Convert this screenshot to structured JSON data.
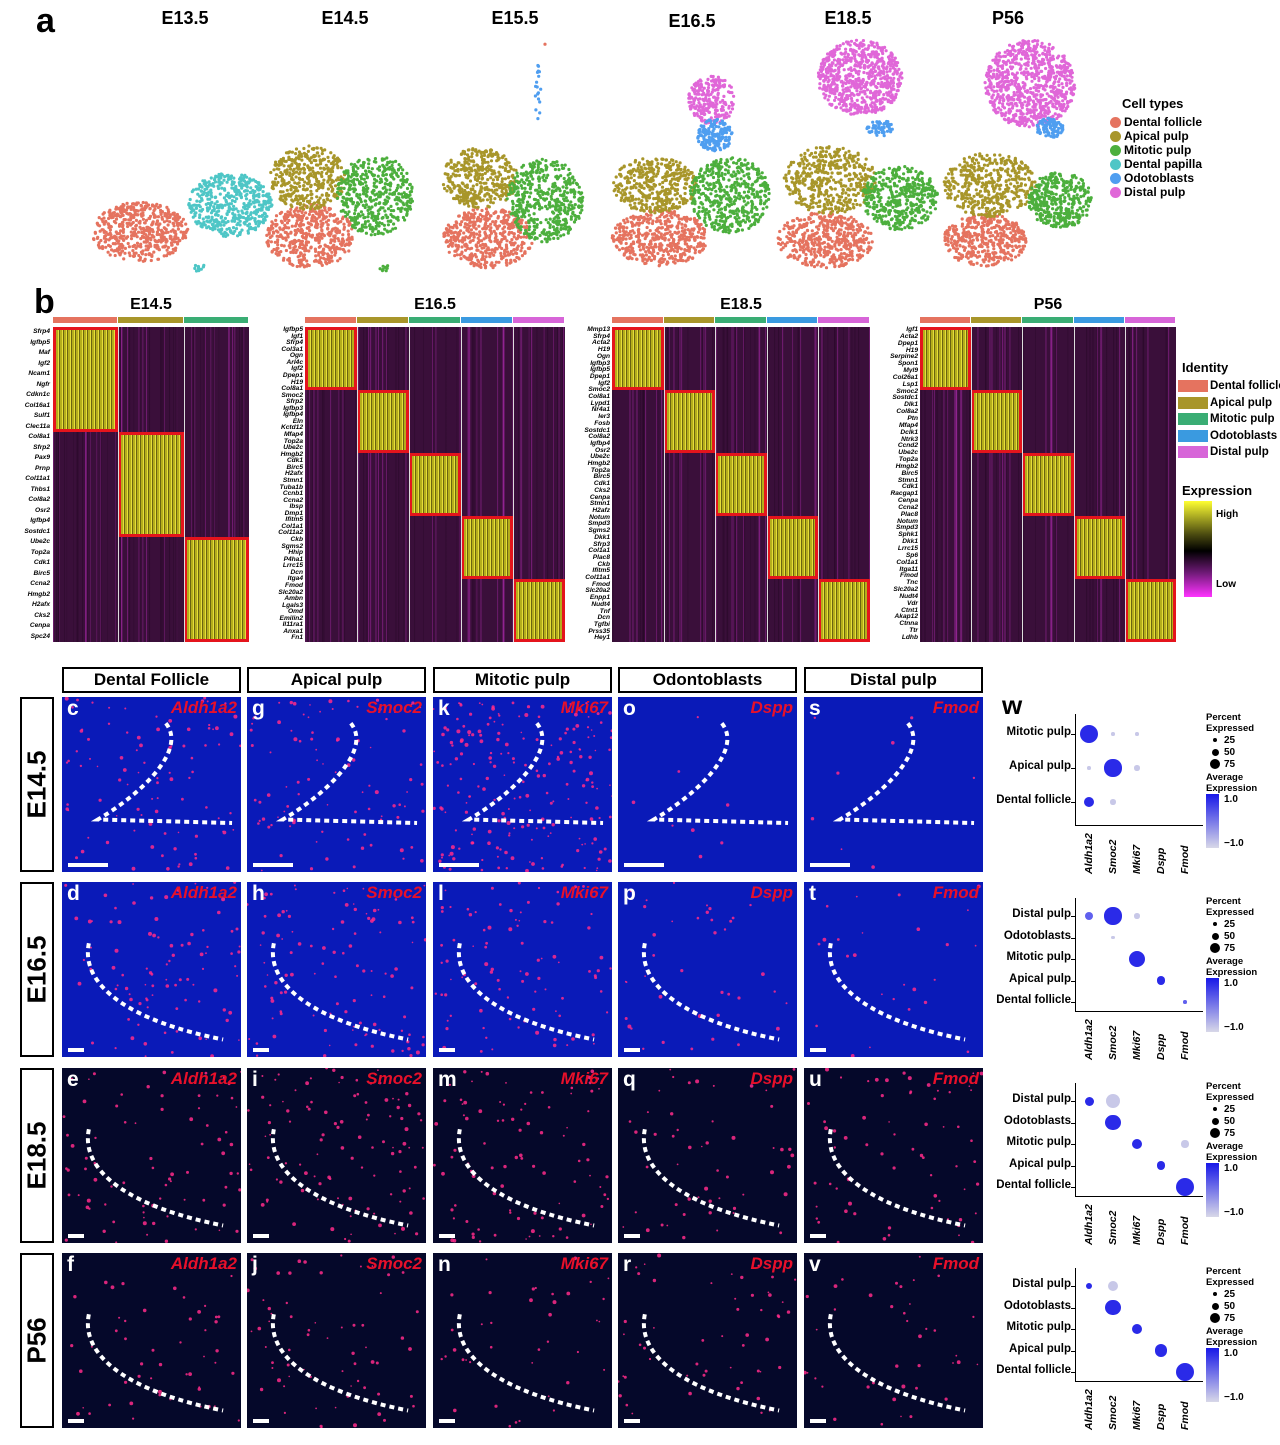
{
  "panel_a": {
    "letter": "a",
    "timepoints": [
      "E13.5",
      "E14.5",
      "E15.5",
      "E16.5",
      "E18.5",
      "P56"
    ],
    "legend_title": "Cell types",
    "legend": [
      {
        "label": "Dental follicle",
        "color": "#e5735f"
      },
      {
        "label": "Apical pulp",
        "color": "#a8962a"
      },
      {
        "label": "Mitotic pulp",
        "color": "#4caf3d"
      },
      {
        "label": "Dental papilla",
        "color": "#4ec6c6"
      },
      {
        "label": "Odotoblasts",
        "color": "#4f9ef0"
      },
      {
        "label": "Distal pulp",
        "color": "#e067d8"
      }
    ]
  },
  "panel_b": {
    "letter": "b",
    "legend_identity_title": "Identity",
    "legend_identity": [
      {
        "label": "Dental follicle",
        "color": "#e5735f"
      },
      {
        "label": "Apical pulp",
        "color": "#a8962a"
      },
      {
        "label": "Mitotic pulp",
        "color": "#3aad74"
      },
      {
        "label": "Odotoblasts",
        "color": "#3a9ae0"
      },
      {
        "label": "Distal pulp",
        "color": "#d765d8"
      }
    ],
    "legend_expression_title": "Expression",
    "expression_high": "High",
    "expression_low": "Low",
    "heatmaps": [
      {
        "title": "E14.5",
        "groups": [
          "#e5735f",
          "#a8962a",
          "#3aad74"
        ],
        "genes": [
          "Sfrp4",
          "Igfbp5",
          "Maf",
          "Igf2",
          "Ncam1",
          "Ngfr",
          "Cdkn1c",
          "Col16a1",
          "Sulf1",
          "Clec11a",
          "Col8a1",
          "Sfrp2",
          "Pax9",
          "Prnp",
          "Col11a1",
          "Thbs1",
          "Col8a2",
          "Osr2",
          "Igfbp4",
          "Sostdc1",
          "Ube2c",
          "Top2a",
          "Cdk1",
          "Birc5",
          "Ccna2",
          "Hmgb2",
          "H2afx",
          "Cks2",
          "Cenpa",
          "Spc24"
        ]
      },
      {
        "title": "E16.5",
        "groups": [
          "#e5735f",
          "#a8962a",
          "#3aad74",
          "#3a9ae0",
          "#d765d8"
        ],
        "genes": [
          "Igfbp5",
          "Igf1",
          "Sfrp4",
          "Col3a1",
          "Ogn",
          "Arl4c",
          "Igf2",
          "Dpep1",
          "H19",
          "Col8a1",
          "Smoc2",
          "Sfrp2",
          "Igfbp3",
          "Igfbp4",
          "Eln",
          "Kctd12",
          "Mfap4",
          "Top2a",
          "Ube2c",
          "Hmgb2",
          "Cdk1",
          "Birc5",
          "H2afx",
          "Stmn1",
          "Tuba1b",
          "Ccnb1",
          "Ccna2",
          "Ibsp",
          "Dmp1",
          "Ifitm5",
          "Col1a1",
          "Col11a2",
          "Ckb",
          "Sgms2",
          "Hhip",
          "P4ha1",
          "Lrrc15",
          "Dcn",
          "Itga4",
          "Fmod",
          "Slc20a2",
          "Ambn",
          "Lgals3",
          "Omd",
          "Emilin2",
          "Il11ra1",
          "Anxa1",
          "Fn1"
        ]
      },
      {
        "title": "E18.5",
        "groups": [
          "#e5735f",
          "#a8962a",
          "#3aad74",
          "#3a9ae0",
          "#d765d8"
        ],
        "genes": [
          "Mmp13",
          "Sfrp4",
          "Acta2",
          "H19",
          "Ogn",
          "Igfbp3",
          "Igfbp5",
          "Dpep1",
          "Igf2",
          "Smoc2",
          "Col8a1",
          "Lypd1",
          "Nr4a1",
          "Ier3",
          "Fosb",
          "Sostdc1",
          "Col8a2",
          "Igfbp4",
          "Osr2",
          "Ube2c",
          "Hmgb2",
          "Top2a",
          "Birc5",
          "Cdk1",
          "Cks2",
          "Cenpa",
          "Stmn1",
          "H2afz",
          "Notum",
          "Smpd3",
          "Sgms2",
          "Dkk1",
          "Sfrp3",
          "Col1a1",
          "Plac8",
          "Ckb",
          "Ifitm5",
          "Col11a1",
          "Fmod",
          "Slc20a2",
          "Enpp1",
          "Nudt4",
          "Tnf",
          "Dcn",
          "Tgfbi",
          "Prss35",
          "Hey1"
        ]
      },
      {
        "title": "P56",
        "groups": [
          "#e5735f",
          "#a8962a",
          "#3aad74",
          "#3a9ae0",
          "#d765d8"
        ],
        "genes": [
          "Igf1",
          "Acta2",
          "Dpep1",
          "H19",
          "Serpine2",
          "Spon1",
          "Myl9",
          "Col26a1",
          "Lsp1",
          "Smoc2",
          "Sostdc1",
          "Dlk1",
          "Col8a2",
          "Ptn",
          "Mfap4",
          "Dclk1",
          "Ntrk3",
          "Ccnd2",
          "Ube2c",
          "Top2a",
          "Hmgb2",
          "Birc5",
          "Stmn1",
          "Cdk1",
          "Racgap1",
          "Cenpa",
          "Ccna2",
          "Plac8",
          "Notum",
          "Smpd3",
          "Sphk1",
          "Dkk1",
          "Lrrc15",
          "Sp6",
          "Col1a1",
          "Itga11",
          "Fmod",
          "Tnc",
          "Slc20a2",
          "Nudt4",
          "Vdr",
          "Ctnt1",
          "Akap12",
          "Ctnna",
          "Ttr",
          "Ldhb"
        ]
      }
    ]
  },
  "panel_ish": {
    "columns": [
      "Dental Follicle",
      "Apical pulp",
      "Mitotic pulp",
      "Odontoblasts",
      "Distal pulp"
    ],
    "genes": [
      "Aldh1a2",
      "Smoc2",
      "Mki67",
      "Dspp",
      "Fmod"
    ],
    "rows": [
      "E14.5",
      "E16.5",
      "E18.5",
      "P56"
    ],
    "letters": [
      [
        "c",
        "g",
        "k",
        "o",
        "s"
      ],
      [
        "d",
        "h",
        "l",
        "p",
        "t"
      ],
      [
        "e",
        "i",
        "m",
        "q",
        "u"
      ],
      [
        "f",
        "j",
        "n",
        "r",
        "v"
      ]
    ]
  },
  "panel_w": {
    "letter": "w",
    "x_genes": [
      "Aldh1a2",
      "Smoc2",
      "Mki67",
      "Dspp",
      "Fmod"
    ],
    "legend_percent_title": "Percent Expressed",
    "legend_percent_values": [
      "25",
      "50",
      "75"
    ],
    "legend_avg_title": "Average Expression",
    "legend_avg_high": "1.0",
    "legend_avg_low": "−1.0",
    "plots": [
      {
        "rows": [
          "Mitotic pulp",
          "Apical pulp",
          "Dental follicle"
        ],
        "points": [
          [
            0,
            2,
            1,
            0.9,
            "dark"
          ],
          [
            1,
            2,
            0.2,
            0.2,
            "light"
          ],
          [
            2,
            2,
            0.2,
            0.2,
            "light"
          ],
          [
            0,
            1,
            0.2,
            0.2,
            "light"
          ],
          [
            1,
            1,
            0.95,
            0.9,
            "dark"
          ],
          [
            2,
            1,
            0.3,
            0.3,
            "light"
          ],
          [
            0,
            0,
            0.55,
            0.9,
            "dark"
          ],
          [
            1,
            0,
            0.3,
            0.3,
            "light"
          ]
        ]
      },
      {
        "rows": [
          "Distal pulp",
          "Odotoblasts",
          "Mitotic pulp",
          "Apical pulp",
          "Dental follicle"
        ],
        "points": [
          [
            0,
            4,
            0.45,
            0.9,
            "mid"
          ],
          [
            1,
            4,
            0.95,
            0.95,
            "dark"
          ],
          [
            2,
            4,
            0.3,
            0.4,
            "light"
          ],
          [
            1,
            3,
            0.2,
            0.2,
            "light"
          ],
          [
            2,
            2,
            0.9,
            0.95,
            "dark"
          ],
          [
            3,
            1,
            0.45,
            0.9,
            "dark"
          ],
          [
            4,
            0,
            0.2,
            0.7,
            "mid"
          ]
        ]
      },
      {
        "rows": [
          "Distal pulp",
          "Odotoblasts",
          "Mitotic pulp",
          "Apical pulp",
          "Dental follicle"
        ],
        "points": [
          [
            0,
            4,
            0.5,
            0.9,
            "dark"
          ],
          [
            1,
            4,
            0.8,
            0.4,
            "light"
          ],
          [
            1,
            3,
            0.85,
            0.9,
            "dark"
          ],
          [
            2,
            2,
            0.6,
            0.95,
            "dark"
          ],
          [
            4,
            2,
            0.4,
            0.4,
            "light"
          ],
          [
            3,
            1,
            0.45,
            0.9,
            "dark"
          ],
          [
            4,
            0,
            1.0,
            0.95,
            "dark"
          ]
        ]
      },
      {
        "rows": [
          "Distal pulp",
          "Odotoblasts",
          "Mitotic pulp",
          "Apical pulp",
          "Dental follicle"
        ],
        "points": [
          [
            0,
            4,
            0.35,
            0.9,
            "dark"
          ],
          [
            1,
            4,
            0.55,
            0.4,
            "light"
          ],
          [
            1,
            3,
            0.85,
            0.9,
            "dark"
          ],
          [
            2,
            2,
            0.55,
            0.95,
            "dark"
          ],
          [
            3,
            1,
            0.7,
            0.95,
            "dark"
          ],
          [
            4,
            0,
            1.0,
            0.95,
            "dark"
          ]
        ]
      }
    ]
  }
}
